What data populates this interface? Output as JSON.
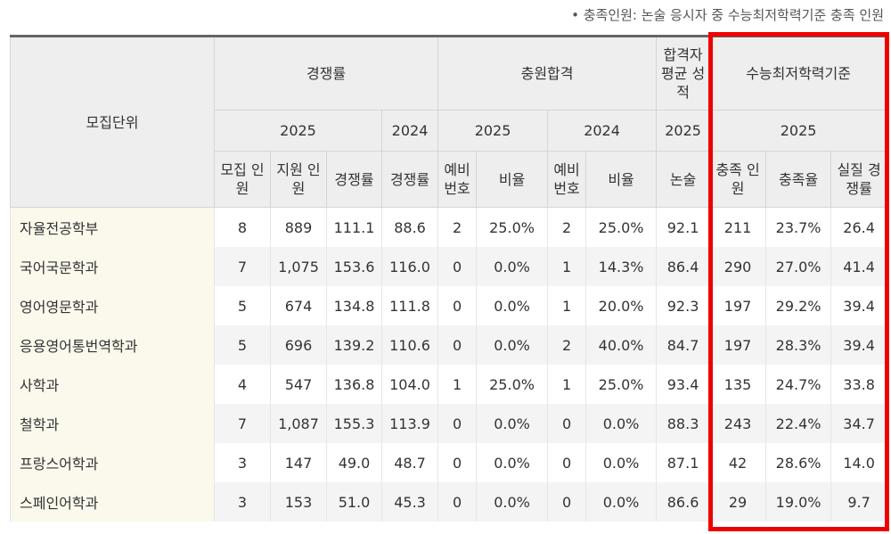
{
  "note": "• 충족인원: 논술 응시자 중 수능최저학력기준 충족 인원",
  "header": {
    "unit": "모집단위",
    "competition": "경쟁률",
    "additional": "충원합격",
    "avg_score": "합격자 평균 성적",
    "csat_min": "수능최저학력기준",
    "year_2025": "2025",
    "year_2024": "2024",
    "sub": {
      "quota": "모집 인원",
      "applicants": "지원 인원",
      "ratio": "경쟁률",
      "ratio_2024": "경쟁률",
      "wait_no": "예비 번호",
      "rate": "비율",
      "wait_no_2024": "예비 번호",
      "rate_2024": "비율",
      "essay": "논술",
      "met": "충족 인원",
      "met_rate": "충족율",
      "real_ratio": "실질 경쟁률"
    }
  },
  "rows": [
    [
      "자율전공학부",
      "8",
      "889",
      "111.1",
      "88.6",
      "2",
      "25.0%",
      "2",
      "25.0%",
      "92.1",
      "211",
      "23.7%",
      "26.4"
    ],
    [
      "국어국문학과",
      "7",
      "1,075",
      "153.6",
      "116.0",
      "0",
      "0.0%",
      "1",
      "14.3%",
      "86.4",
      "290",
      "27.0%",
      "41.4"
    ],
    [
      "영어영문학과",
      "5",
      "674",
      "134.8",
      "111.8",
      "0",
      "0.0%",
      "1",
      "20.0%",
      "92.3",
      "197",
      "29.2%",
      "39.4"
    ],
    [
      "응용영어통번역학과",
      "5",
      "696",
      "139.2",
      "110.6",
      "0",
      "0.0%",
      "2",
      "40.0%",
      "84.7",
      "197",
      "28.3%",
      "39.4"
    ],
    [
      "사학과",
      "4",
      "547",
      "136.8",
      "104.0",
      "1",
      "25.0%",
      "1",
      "25.0%",
      "93.4",
      "135",
      "24.7%",
      "33.8"
    ],
    [
      "철학과",
      "7",
      "1,087",
      "155.3",
      "113.9",
      "0",
      "0.0%",
      "0",
      "0.0%",
      "88.3",
      "243",
      "22.4%",
      "34.7"
    ],
    [
      "프랑스어학과",
      "3",
      "147",
      "49.0",
      "48.7",
      "0",
      "0.0%",
      "0",
      "0.0%",
      "87.1",
      "42",
      "28.6%",
      "14.0"
    ],
    [
      "스페인어학과",
      "3",
      "153",
      "51.0",
      "45.3",
      "0",
      "0.0%",
      "0",
      "0.0%",
      "86.6",
      "29",
      "19.0%",
      "9.7"
    ]
  ],
  "colors": {
    "highlight_border": "#ee0000",
    "header_bg": "#eeeeee",
    "name_bg": "#fbf8ec"
  }
}
